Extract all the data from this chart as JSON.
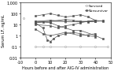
{
  "title": "",
  "xlabel": "Hours before and after AIG-IV administration",
  "ylabel": "Serum LF, ng/mL",
  "xlim": [
    -10,
    50
  ],
  "ylim_log": [
    0.01,
    1000
  ],
  "yticks": [
    0.01,
    0.1,
    1,
    10,
    100,
    1000
  ],
  "ytick_labels": [
    "0.01",
    "0.1",
    "1",
    "10",
    "100",
    "1,000"
  ],
  "xticks": [
    -10,
    0,
    10,
    20,
    30,
    40,
    50
  ],
  "legend_labels": [
    "Survived",
    "Nonsurvivor"
  ],
  "background_color": "#ffffff",
  "surv_color": "#aaaaaa",
  "nonsurv_color": "#555555",
  "survivor_series": [
    {
      "x": [
        -8
      ],
      "y": [
        40
      ]
    },
    {
      "x": [
        0,
        10,
        20,
        30,
        40,
        45
      ],
      "y": [
        15,
        18,
        20,
        18,
        20,
        22
      ]
    },
    {
      "x": [
        0,
        10,
        20,
        30,
        40
      ],
      "y": [
        18,
        22,
        18,
        20,
        25
      ]
    },
    {
      "x": [
        0,
        5,
        10,
        20,
        30,
        40,
        48
      ],
      "y": [
        0.1,
        0.1,
        0.1,
        0.1,
        0.1,
        0.1,
        0.1
      ]
    }
  ],
  "nonsurvivor_series": [
    {
      "x": [
        0,
        5,
        8,
        10,
        12,
        15,
        20,
        25,
        30,
        35,
        40
      ],
      "y": [
        15,
        5,
        0.4,
        0.3,
        0.5,
        1.0,
        1.5,
        2.0,
        1.5,
        1.0,
        0.8
      ]
    },
    {
      "x": [
        0,
        5,
        10,
        15,
        20,
        25,
        30,
        35,
        40,
        45
      ],
      "y": [
        60,
        80,
        100,
        70,
        50,
        60,
        80,
        50,
        25,
        20
      ]
    },
    {
      "x": [
        0,
        5,
        10,
        15,
        20,
        25,
        30,
        40,
        45
      ],
      "y": [
        20,
        18,
        15,
        8,
        5,
        3,
        3,
        1,
        0.5
      ]
    },
    {
      "x": [
        0,
        10,
        15,
        20,
        25,
        30,
        35,
        40
      ],
      "y": [
        10,
        8,
        5,
        8,
        10,
        15,
        20,
        25
      ]
    },
    {
      "x": [
        0,
        5,
        10,
        20,
        30,
        40
      ],
      "y": [
        4,
        1.5,
        1.0,
        2.0,
        1.0,
        1.5
      ]
    },
    {
      "x": [
        0,
        10,
        20,
        30,
        40
      ],
      "y": [
        20,
        25,
        20,
        18,
        20
      ]
    },
    {
      "x": [
        0,
        10,
        20,
        25,
        30,
        35,
        40,
        45
      ],
      "y": [
        15,
        20,
        30,
        25,
        20,
        18,
        20,
        22
      ]
    }
  ]
}
